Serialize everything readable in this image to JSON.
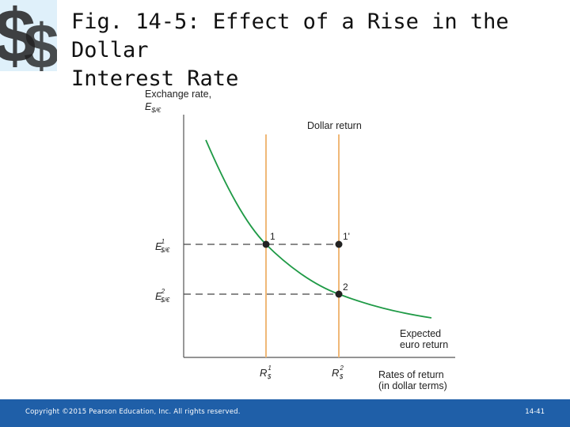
{
  "title": {
    "line1": "Fig. 14-5: Effect of a Rise in the Dollar",
    "line2": "Interest Rate"
  },
  "colors": {
    "curve": "#1f9a46",
    "vertical_lines": "#f0b878",
    "footer_bg": "#1f5fa8",
    "logo": "#2a8fd0"
  },
  "chart_data": {
    "type": "line",
    "y_axis_label": "Exchange rate,",
    "y_axis_symbol": "E",
    "y_axis_sub": "$/€",
    "x_axis_label_line1": "Rates of return",
    "x_axis_label_line2": "(in dollar terms)",
    "dollar_return_label": "Dollar return",
    "curve_label_line1": "Expected",
    "curve_label_line2": "euro return",
    "y_ticks": [
      {
        "symbol": "E",
        "sup": "1",
        "sub": "$/€"
      },
      {
        "symbol": "E",
        "sup": "2",
        "sub": "$/€"
      }
    ],
    "x_ticks": [
      {
        "symbol": "R",
        "sup": "1",
        "sub": "$"
      },
      {
        "symbol": "R",
        "sup": "2",
        "sub": "$"
      }
    ],
    "points": [
      {
        "label": "1"
      },
      {
        "label": "1'"
      },
      {
        "label": "2"
      }
    ]
  },
  "footer": {
    "copyright": "Copyright ©2015 Pearson Education, Inc. All rights reserved.",
    "slide_number": "14-41"
  }
}
